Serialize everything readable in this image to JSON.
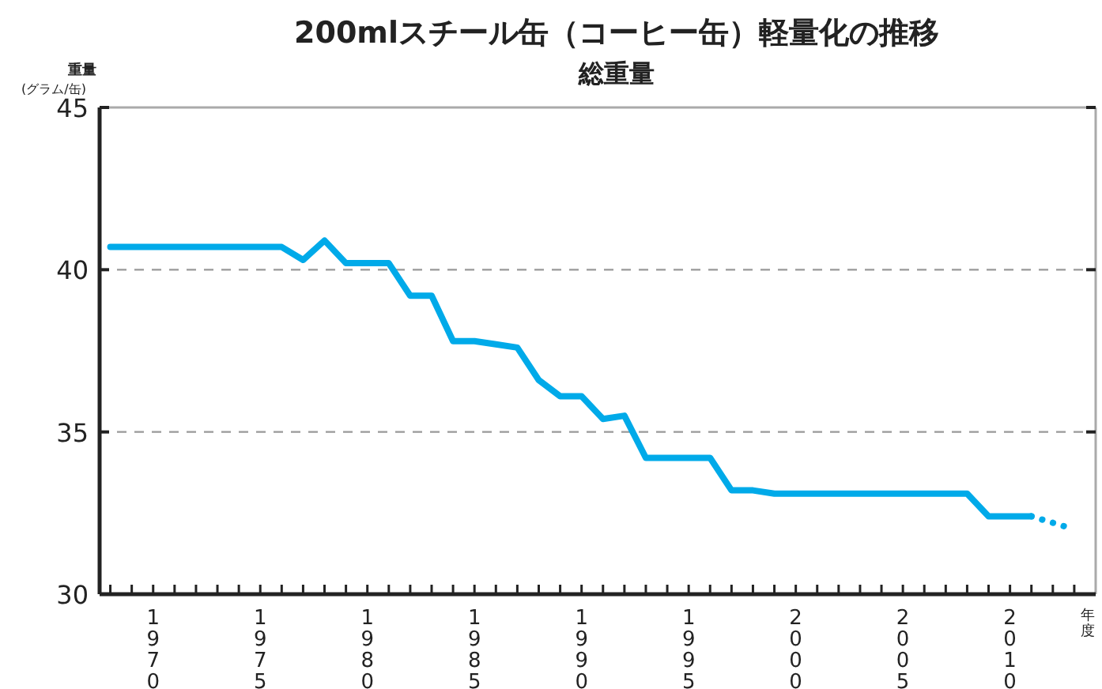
{
  "chart_data": {
    "type": "line",
    "title": "200mlスチール缶（コーヒー缶）軽量化の推移",
    "subtitle": "総重量",
    "ylabel": "重量\n(グラム/缶)",
    "xlabel": "年度",
    "series": [
      {
        "color": "#00aae9",
        "line_style": "solid",
        "x": [
          1968,
          1969,
          1970,
          1971,
          1972,
          1973,
          1974,
          1975,
          1976,
          1977,
          1978,
          1979,
          1980,
          1981,
          1982,
          1983,
          1984,
          1985,
          1986,
          1987,
          1988,
          1989,
          1990,
          1991,
          1992,
          1993,
          1994,
          1995,
          1996,
          1997,
          1998,
          1999,
          2000,
          2001,
          2002,
          2003,
          2004,
          2005,
          2006,
          2007,
          2008,
          2009,
          2010,
          2011
        ],
        "values": [
          40.7,
          40.7,
          40.7,
          40.7,
          40.7,
          40.7,
          40.7,
          40.7,
          40.7,
          40.3,
          40.9,
          40.2,
          40.2,
          40.2,
          39.2,
          39.2,
          37.8,
          37.8,
          37.7,
          37.6,
          36.6,
          36.1,
          36.1,
          35.4,
          35.5,
          34.2,
          34.2,
          34.2,
          34.2,
          33.2,
          33.2,
          33.1,
          33.1,
          33.1,
          33.1,
          33.1,
          33.1,
          33.1,
          33.1,
          33.1,
          33.1,
          32.4,
          32.4,
          32.4
        ]
      },
      {
        "color": "#00aae9",
        "line_style": "dotted",
        "x": [
          2011,
          2013
        ],
        "values": [
          32.4,
          32.0
        ]
      }
    ],
    "xlim": [
      1967.5,
      2014
    ],
    "xticks": [
      {
        "value": 1968,
        "label": null
      },
      {
        "value": 1969,
        "label": null
      },
      {
        "value": 1970,
        "label": "1970"
      },
      {
        "value": 1971,
        "label": null
      },
      {
        "value": 1972,
        "label": null
      },
      {
        "value": 1973,
        "label": null
      },
      {
        "value": 1974,
        "label": null
      },
      {
        "value": 1975,
        "label": "1975"
      },
      {
        "value": 1976,
        "label": null
      },
      {
        "value": 1977,
        "label": null
      },
      {
        "value": 1978,
        "label": null
      },
      {
        "value": 1979,
        "label": null
      },
      {
        "value": 1980,
        "label": "1980"
      },
      {
        "value": 1981,
        "label": null
      },
      {
        "value": 1982,
        "label": null
      },
      {
        "value": 1983,
        "label": null
      },
      {
        "value": 1984,
        "label": null
      },
      {
        "value": 1985,
        "label": "1985"
      },
      {
        "value": 1986,
        "label": null
      },
      {
        "value": 1987,
        "label": null
      },
      {
        "value": 1988,
        "label": null
      },
      {
        "value": 1989,
        "label": null
      },
      {
        "value": 1990,
        "label": "1990"
      },
      {
        "value": 1991,
        "label": null
      },
      {
        "value": 1992,
        "label": null
      },
      {
        "value": 1993,
        "label": null
      },
      {
        "value": 1994,
        "label": null
      },
      {
        "value": 1995,
        "label": "1995"
      },
      {
        "value": 1996,
        "label": null
      },
      {
        "value": 1997,
        "label": null
      },
      {
        "value": 1998,
        "label": null
      },
      {
        "value": 1999,
        "label": null
      },
      {
        "value": 2000,
        "label": "2000"
      },
      {
        "value": 2001,
        "label": null
      },
      {
        "value": 2002,
        "label": null
      },
      {
        "value": 2003,
        "label": null
      },
      {
        "value": 2004,
        "label": null
      },
      {
        "value": 2005,
        "label": "2005"
      },
      {
        "value": 2006,
        "label": null
      },
      {
        "value": 2007,
        "label": null
      },
      {
        "value": 2008,
        "label": null
      },
      {
        "value": 2009,
        "label": null
      },
      {
        "value": 2010,
        "label": "2010"
      },
      {
        "value": 2011,
        "label": null
      },
      {
        "value": 2012,
        "label": null
      },
      {
        "value": 2013,
        "label": null
      }
    ],
    "ylim": [
      30,
      45
    ],
    "yticks": [
      30,
      35,
      40,
      45
    ],
    "grid": "y",
    "marker": "none"
  }
}
